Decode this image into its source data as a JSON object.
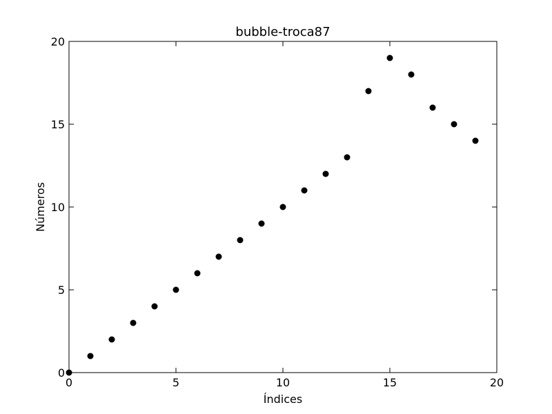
{
  "chart_data": {
    "type": "scatter",
    "title": "bubble-troca87",
    "xlabel": "Índices",
    "ylabel": "Números",
    "xlim": [
      0,
      20
    ],
    "ylim": [
      0,
      20
    ],
    "xticks": [
      0,
      5,
      10,
      15,
      20
    ],
    "yticks": [
      0,
      5,
      10,
      15,
      20
    ],
    "grid": false,
    "marker_color": "#000000",
    "series": [
      {
        "x": [
          0,
          1,
          2,
          3,
          4,
          5,
          6,
          7,
          8,
          9,
          10,
          11,
          12,
          13,
          14,
          15,
          16,
          17,
          18,
          19
        ],
        "y": [
          0,
          1,
          2,
          3,
          4,
          5,
          6,
          7,
          8,
          9,
          10,
          11,
          12,
          13,
          17,
          19,
          18,
          16,
          15,
          14
        ]
      }
    ]
  }
}
